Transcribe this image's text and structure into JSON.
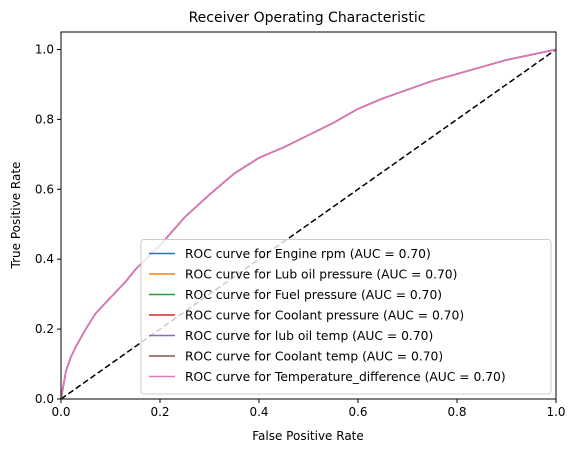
{
  "chart_data": {
    "type": "line",
    "title": "Receiver Operating Characteristic",
    "xlabel": "False Positive Rate",
    "ylabel": "True Positive Rate",
    "xlim": [
      0.0,
      1.0
    ],
    "ylim": [
      0.0,
      1.05
    ],
    "xticks": [
      0.0,
      0.2,
      0.4,
      0.6,
      0.8,
      1.0
    ],
    "yticks": [
      0.0,
      0.2,
      0.4,
      0.6,
      0.8,
      1.0
    ],
    "xtick_labels": [
      "0.0",
      "0.2",
      "0.4",
      "0.6",
      "0.8",
      "1.0"
    ],
    "ytick_labels": [
      "0.0",
      "0.2",
      "0.4",
      "0.6",
      "0.8",
      "1.0"
    ],
    "grid": false,
    "legend_position": "lower-right",
    "series": [
      {
        "name": "ROC curve for Engine rpm (AUC = 0.70)",
        "color": "#1f77b4"
      },
      {
        "name": "ROC curve for Lub oil pressure (AUC = 0.70)",
        "color": "#ff7f0e"
      },
      {
        "name": "ROC curve for Fuel pressure (AUC = 0.70)",
        "color": "#2ca02c"
      },
      {
        "name": "ROC curve for Coolant pressure (AUC = 0.70)",
        "color": "#d62728"
      },
      {
        "name": "ROC curve for lub oil temp (AUC = 0.70)",
        "color": "#9467bd"
      },
      {
        "name": "ROC curve for Coolant temp (AUC = 0.70)",
        "color": "#8c564b"
      },
      {
        "name": "ROC curve for Temperature_difference (AUC = 0.70)",
        "color": "#e377c2"
      }
    ],
    "roc_points": {
      "x": [
        0.0,
        0.005,
        0.01,
        0.02,
        0.03,
        0.05,
        0.07,
        0.1,
        0.13,
        0.15,
        0.2,
        0.25,
        0.3,
        0.35,
        0.4,
        0.45,
        0.5,
        0.55,
        0.6,
        0.65,
        0.7,
        0.75,
        0.8,
        0.85,
        0.9,
        0.95,
        1.0
      ],
      "y": [
        0.0,
        0.04,
        0.08,
        0.12,
        0.15,
        0.2,
        0.245,
        0.29,
        0.335,
        0.37,
        0.44,
        0.52,
        0.585,
        0.645,
        0.69,
        0.72,
        0.755,
        0.79,
        0.83,
        0.86,
        0.885,
        0.91,
        0.93,
        0.95,
        0.97,
        0.985,
        1.0
      ]
    },
    "reference_line": {
      "x": [
        0.0,
        1.0
      ],
      "y": [
        0.0,
        1.0
      ],
      "color": "#000000",
      "style": "dashed"
    }
  }
}
